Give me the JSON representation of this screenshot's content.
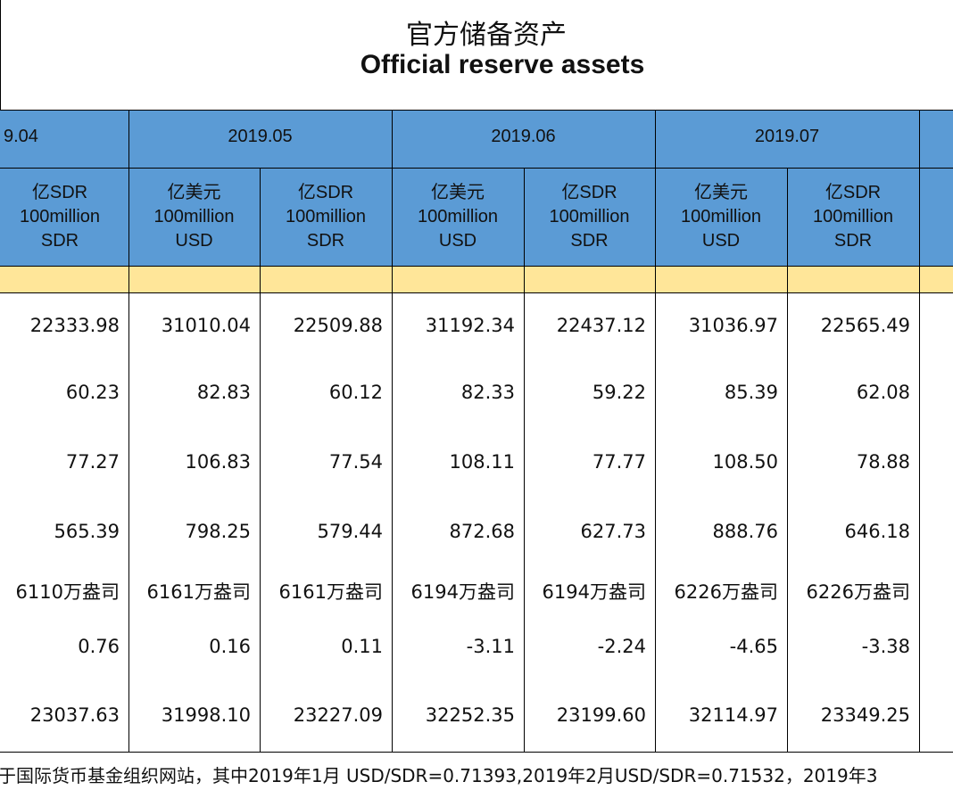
{
  "header": {
    "title_cn": "官方储备资产",
    "title_en": "Official reserve assets"
  },
  "table": {
    "periods": [
      "9.04",
      "2019.05",
      "2019.06",
      "2019.07"
    ],
    "units": [
      [
        "亿SDR",
        "100million",
        "SDR"
      ],
      [
        "亿美元",
        "100million",
        "USD"
      ],
      [
        "亿SDR",
        "100million",
        "SDR"
      ],
      [
        "亿美元",
        "100million",
        "USD"
      ],
      [
        "亿SDR",
        "100million",
        "SDR"
      ],
      [
        "亿美元",
        "100million",
        "USD"
      ],
      [
        "亿SDR",
        "100million",
        "SDR"
      ]
    ],
    "rows": [
      [
        "22333.98",
        "31010.04",
        "22509.88",
        "31192.34",
        "22437.12",
        "31036.97",
        "22565.49"
      ],
      [
        "60.23",
        "82.83",
        "60.12",
        "82.33",
        "59.22",
        "85.39",
        "62.08"
      ],
      [
        "77.27",
        "106.83",
        "77.54",
        "108.11",
        "77.77",
        "108.50",
        "78.88"
      ],
      [
        "565.39",
        "798.25",
        "579.44",
        "872.68",
        "627.73",
        "888.76",
        "646.18"
      ],
      [
        "6110万盎司",
        "6161万盎司",
        "6161万盎司",
        "6194万盎司",
        "6194万盎司",
        "6226万盎司",
        "6226万盎司"
      ],
      [
        "0.76",
        "0.16",
        "0.11",
        "-3.11",
        "-2.24",
        "-4.65",
        "-3.38"
      ],
      [
        "23037.63",
        "31998.10",
        "23227.09",
        "32252.35",
        "23199.60",
        "32114.97",
        "23349.25"
      ]
    ]
  },
  "footnote": "于国际货币基金组织网站，其中2019年1月 USD/SDR=0.71393,2019年2月USD/SDR=0.71532，2019年3"
}
